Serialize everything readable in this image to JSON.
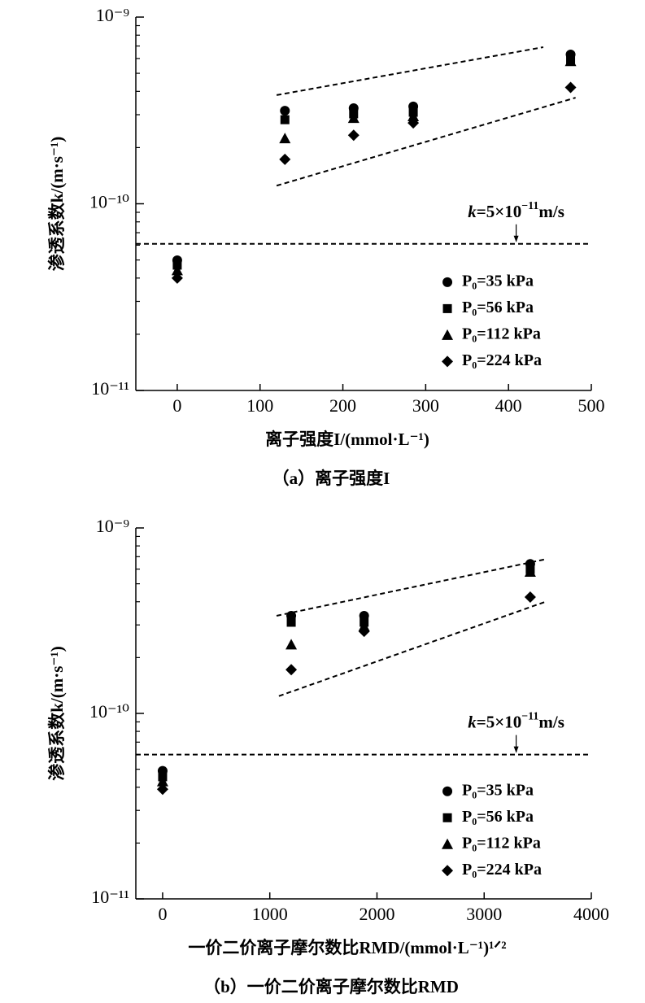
{
  "chart_data": [
    {
      "type": "scatter",
      "yscale": "log",
      "legend": "right",
      "xlabel": "离子强度I/(mmol·L⁻¹)",
      "ylabel": "渗透系数k/(m·s⁻¹)",
      "caption": "（a）离子强度I",
      "x": [
        0,
        130,
        213,
        285,
        475
      ],
      "series": [
        {
          "name": "P₀=35 kPa",
          "marker": "circle",
          "color": "#000000",
          "values": [
            4.98e-11,
            3.15e-10,
            3.25e-10,
            3.32e-10,
            6.3e-10
          ]
        },
        {
          "name": "P₀=56 kPa",
          "marker": "square",
          "color": "#000000",
          "values": [
            4.69e-11,
            2.82e-10,
            3.03e-10,
            3.09e-10,
            5.9e-10
          ]
        },
        {
          "name": "P₀=112 kPa",
          "marker": "triangle",
          "color": "#000000",
          "values": [
            4.4e-11,
            2.24e-10,
            2.88e-10,
            2.94e-10,
            5.8e-10
          ]
        },
        {
          "name": "P₀=224 kPa",
          "marker": "diamond",
          "color": "#000000",
          "values": [
            4e-11,
            1.73e-10,
            2.33e-10,
            2.71e-10,
            4.2e-10
          ]
        }
      ],
      "dashed_lines": [
        {
          "x": [
            120,
            442
          ],
          "y": [
            3.82e-10,
            6.9e-10
          ]
        },
        {
          "x": [
            120,
            481
          ],
          "y": [
            1.25e-10,
            3.7e-10
          ]
        }
      ],
      "hline": 6.1e-11,
      "annotation": [
        "k",
        "=5×10",
        "−11",
        "m/s"
      ],
      "xlim": [
        -50,
        500
      ],
      "xticks": [
        0,
        100,
        200,
        300,
        400,
        500
      ],
      "ylim": [
        1e-11,
        1e-09
      ],
      "yticks": [
        {
          "value": 1e-11,
          "label": "10⁻¹¹"
        },
        {
          "value": 1e-10,
          "label": "10⁻¹⁰"
        },
        {
          "value": 1e-09,
          "label": "10⁻⁹"
        }
      ]
    },
    {
      "type": "scatter",
      "yscale": "log",
      "legend": "right",
      "xlabel": "一价二价离子摩尔数比RMD/(mmol·L⁻¹)¹ᐟ²",
      "ylabel": "渗透系数k/(m·s⁻¹)",
      "caption": "（b）一价二价离子摩尔数比RMD",
      "x": [
        0,
        1200,
        1880,
        3430
      ],
      "series": [
        {
          "name": "P₀=35 kPa",
          "marker": "circle",
          "color": "#000000",
          "values": [
            4.9e-11,
            3.36e-10,
            3.36e-10,
            6.4e-10
          ]
        },
        {
          "name": "P₀=56 kPa",
          "marker": "square",
          "color": "#000000",
          "values": [
            4.55e-11,
            3.1e-10,
            3.1e-10,
            5.97e-10
          ]
        },
        {
          "name": "P₀=112 kPa",
          "marker": "triangle",
          "color": "#000000",
          "values": [
            4.3e-11,
            2.35e-10,
            2.95e-10,
            5.8e-10
          ]
        },
        {
          "name": "P₀=224 kPa",
          "marker": "diamond",
          "color": "#000000",
          "values": [
            3.9e-11,
            1.72e-10,
            2.77e-10,
            4.24e-10
          ]
        }
      ],
      "dashed_lines": [
        {
          "x": [
            1063,
            3583
          ],
          "y": [
            3.36e-10,
            6.8e-10
          ]
        },
        {
          "x": [
            1085,
            3567
          ],
          "y": [
            1.24e-10,
            3.99e-10
          ]
        }
      ],
      "hline": 6e-11,
      "annotation": [
        "k",
        "=5×10",
        "−11",
        "m/s"
      ],
      "xlim": [
        -250,
        4000
      ],
      "xticks": [
        0,
        1000,
        2000,
        3000,
        4000
      ],
      "ylim": [
        1e-11,
        1e-09
      ],
      "yticks": [
        {
          "value": 1e-11,
          "label": "10⁻¹¹"
        },
        {
          "value": 1e-10,
          "label": "10⁻¹⁰"
        },
        {
          "value": 1e-09,
          "label": "10⁻⁹"
        }
      ]
    }
  ]
}
